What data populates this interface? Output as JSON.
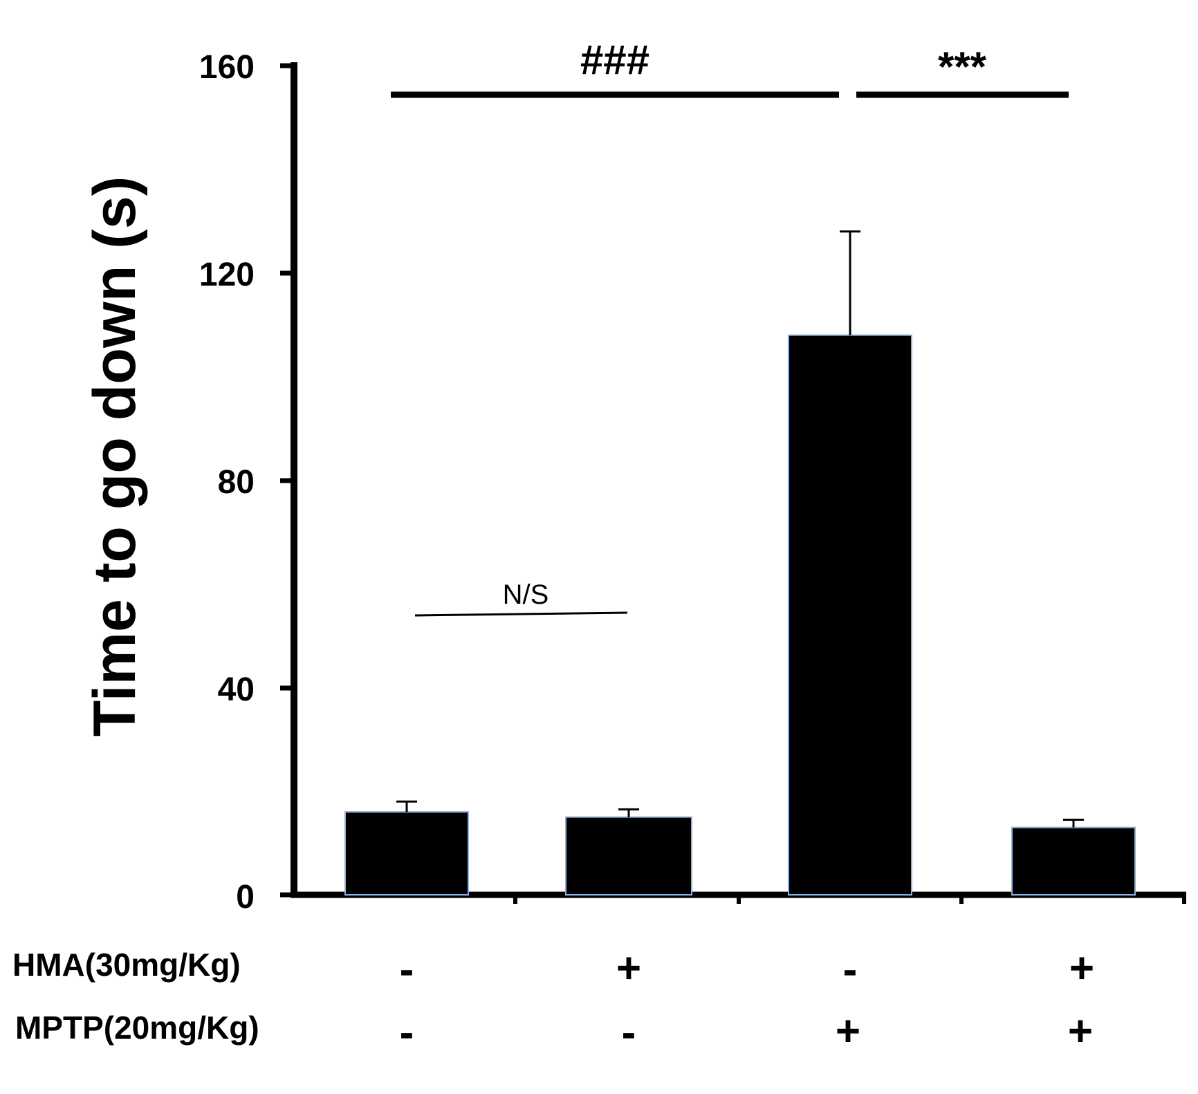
{
  "chart_data": {
    "type": "bar",
    "ylabel": "Time to go down (s)",
    "ylim": [
      0,
      160
    ],
    "yticks": [
      "0",
      "40",
      "80",
      "120",
      "160"
    ],
    "groups": [
      {
        "hma": "-",
        "mptp": "-",
        "value": 16,
        "error": 2
      },
      {
        "hma": "+",
        "mptp": "-",
        "value": 15,
        "error": 1.5
      },
      {
        "hma": "-",
        "mptp": "+",
        "value": 108,
        "error": 20
      },
      {
        "hma": "+",
        "mptp": "+",
        "value": 13,
        "error": 1.5
      }
    ],
    "row_labels": {
      "hma": "HMA(30mg/Kg)",
      "mptp": "MPTP(20mg/Kg)"
    },
    "annotations": {
      "hash": "###",
      "stars": "***",
      "ns": "N/S"
    },
    "colors": {
      "bar": "#000000",
      "bar_edge": "#8fb0d8"
    }
  }
}
